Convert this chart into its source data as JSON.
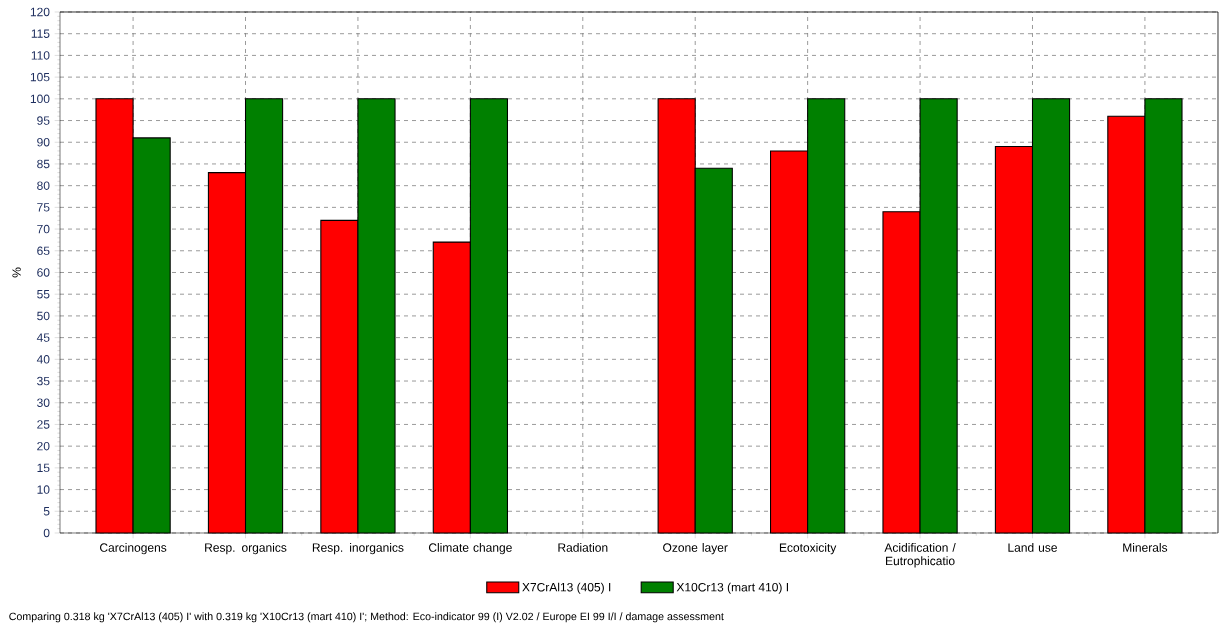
{
  "chart_data": {
    "type": "bar",
    "categories": [
      "Carcinogens",
      "Resp. organics",
      "Resp. inorganics",
      "Climate change",
      "Radiation",
      "Ozone layer",
      "Ecotoxicity",
      "Acidification / Eutrophicatio",
      "Land use",
      "Minerals"
    ],
    "series": [
      {
        "name": "X7CrAl13 (405) I",
        "color": "#ff0000",
        "values": [
          100,
          83,
          72,
          67,
          null,
          100,
          88,
          74,
          89,
          96
        ]
      },
      {
        "name": "X10Cr13 (mart 410) I",
        "color": "#008000",
        "values": [
          91,
          100,
          100,
          100,
          null,
          84,
          100,
          100,
          100,
          100
        ]
      }
    ],
    "ylabel": "%",
    "ylim": [
      0,
      120
    ],
    "yticks": [
      0,
      5,
      10,
      15,
      20,
      25,
      30,
      35,
      40,
      45,
      50,
      55,
      60,
      65,
      70,
      75,
      80,
      85,
      90,
      95,
      100,
      105,
      110,
      115,
      120
    ],
    "grid": true,
    "legend": "bottom",
    "annotations": [
      "Comparing 0.318 kg 'X7CrAl13 (405) I' with 0.319 kg 'X10Cr13 (mart 410) I'; Method: Eco-indicator 99 (I) V2.02 / Europe EI 99 I/I / damage assessment"
    ]
  }
}
